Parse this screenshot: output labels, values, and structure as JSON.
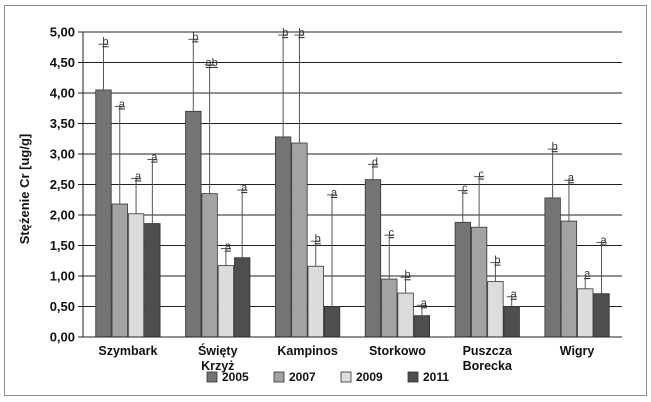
{
  "chart_data": {
    "type": "bar",
    "title": "",
    "xlabel": "",
    "ylabel": "Stężenie Cr [ug/g]",
    "ylim": [
      0,
      5
    ],
    "ytick_step": 0.5,
    "ytick_labels": [
      "0,00",
      "0,50",
      "1,00",
      "1,50",
      "2,00",
      "2,50",
      "3,00",
      "3,50",
      "4,00",
      "4,50",
      "5,00"
    ],
    "grid": true,
    "legend_position": "bottom",
    "categories": [
      [
        "Szymbark"
      ],
      [
        "Święty",
        "Krzyż"
      ],
      [
        "Kampinos"
      ],
      [
        "Storkowo"
      ],
      [
        "Puszcza",
        "Borecka"
      ],
      [
        "Wigry"
      ]
    ],
    "series": [
      {
        "name": "2005",
        "color": "#747474",
        "values": [
          4.05,
          3.7,
          3.28,
          2.58,
          1.88,
          2.28
        ],
        "errors": [
          4.8,
          4.88,
          4.95,
          2.83,
          2.4,
          3.08
        ],
        "labels": [
          "b",
          "b",
          "b",
          "d",
          "c",
          "b"
        ]
      },
      {
        "name": "2007",
        "color": "#a3a3a3",
        "values": [
          2.18,
          2.35,
          3.18,
          0.95,
          1.8,
          1.9
        ],
        "errors": [
          3.78,
          4.46,
          4.95,
          1.67,
          2.63,
          2.57
        ],
        "labels": [
          "a",
          "ab",
          "b",
          "c",
          "c",
          "a"
        ]
      },
      {
        "name": "2009",
        "color": "#dcdcdc",
        "values": [
          2.02,
          1.17,
          1.16,
          0.72,
          0.91,
          0.79
        ],
        "errors": [
          2.6,
          1.45,
          1.57,
          0.98,
          1.22,
          1.0
        ],
        "labels": [
          "a",
          "a",
          "b",
          "b",
          "b",
          "a"
        ]
      },
      {
        "name": "2011",
        "color": "#4e4e4e",
        "values": [
          1.86,
          1.3,
          0.5,
          0.35,
          0.5,
          0.71
        ],
        "errors": [
          2.91,
          2.41,
          2.33,
          0.52,
          0.66,
          1.55
        ],
        "labels": [
          "a",
          "a",
          "a",
          "a",
          "a",
          "a"
        ]
      }
    ]
  }
}
